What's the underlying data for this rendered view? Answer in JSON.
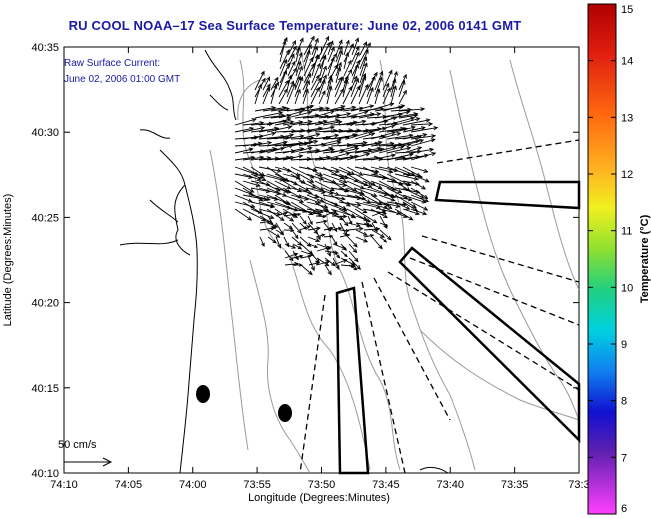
{
  "title": "RU COOL  NOAA–17  Sea Surface Temperature:  June 02, 2006 0141 GMT",
  "overlay": {
    "line1": "Raw Surface Current:",
    "line2": "June 02, 2006 01:00 GMT"
  },
  "scale_label": "50 cm/s",
  "x_axis": {
    "title": "Longitude (Degrees:Minutes)",
    "ticks": [
      "74:10",
      "74:05",
      "74:00",
      "73:55",
      "73:50",
      "73:45",
      "73:40",
      "73:35",
      "73:3"
    ]
  },
  "y_axis": {
    "title": "Latitude (Degrees:Minutes)",
    "ticks": [
      "40:35",
      "40:30",
      "40:25",
      "40:20",
      "40:15",
      "40:10"
    ]
  },
  "colorbar": {
    "label": "Temperature (°C)",
    "ticks": [
      "15",
      "14",
      "13",
      "12",
      "11",
      "10",
      "9",
      "8",
      "7",
      "6"
    ],
    "colors": [
      "#b00000",
      "#e02010",
      "#ff6a10",
      "#ffb020",
      "#f0f020",
      "#90e030",
      "#20d080",
      "#00d0e0",
      "#1080f0",
      "#1010d0",
      "#6020b0",
      "#ff40ff"
    ]
  },
  "accent_color": "#1a1aa8"
}
